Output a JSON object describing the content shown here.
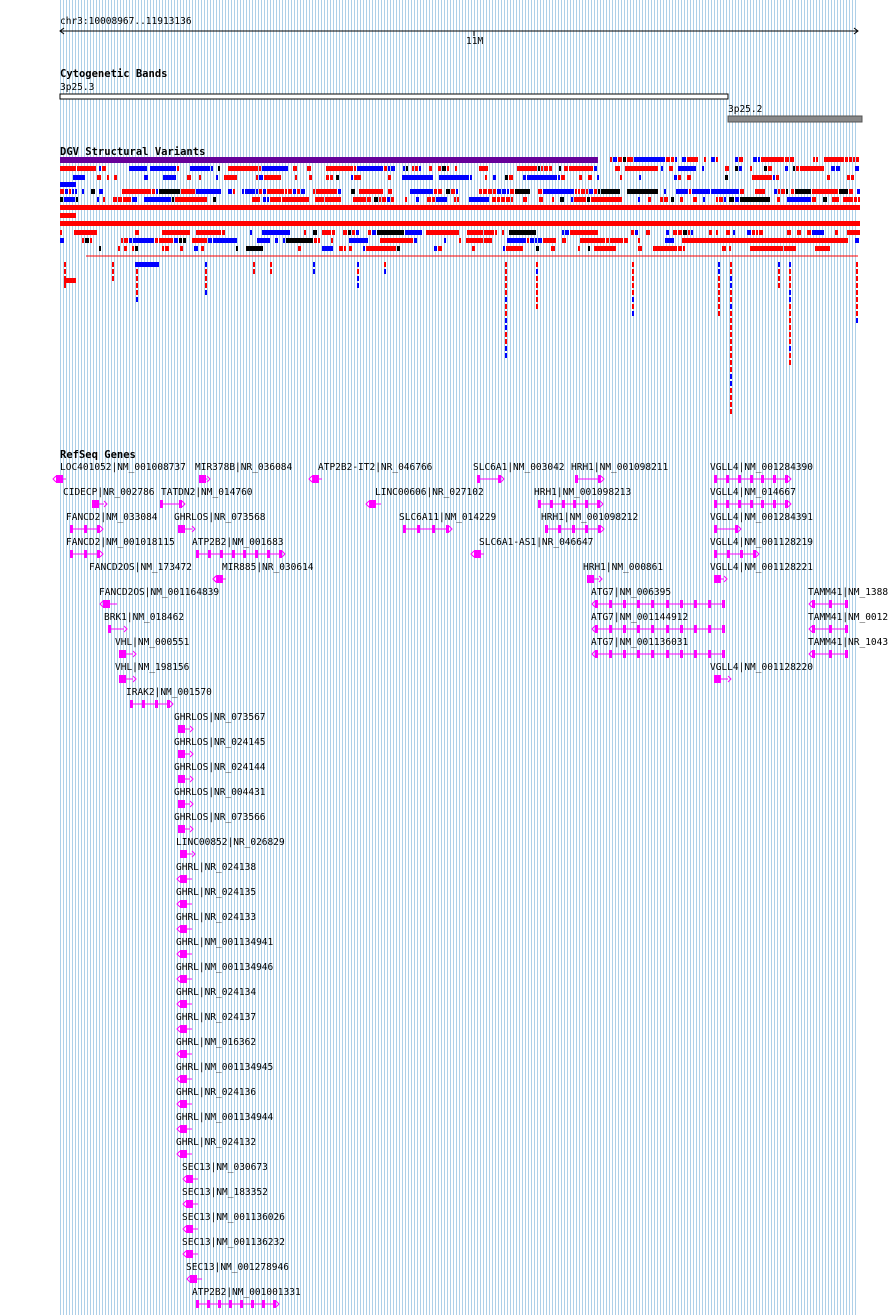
{
  "ruler": {
    "region": "chr3:10008967..11913136",
    "tick_label": "11M"
  },
  "cytobands": {
    "title": "Cytogenetic Bands",
    "bands": [
      "3p25.3",
      "3p25.2"
    ]
  },
  "dgv": {
    "title": "DGV Structural Variants",
    "colors": {
      "loss": "#ff0000",
      "gain": "#0000ff",
      "both": "#660099",
      "other": "#000000"
    }
  },
  "refseq": {
    "title": "RefSeq Genes",
    "color": "#ff00ff",
    "genes": [
      "LOC401052|NM_001008737",
      "MIR378B|NR_036084",
      "ATP2B2-IT2|NR_046766",
      "SLC6A1|NM_003042",
      "HRH1|NM_001098211",
      "VGLL4|NM_001284390",
      "CIDECP|NR_002786",
      "TATDN2|NM_014760",
      "LINC00606|NR_027102",
      "HRH1|NM_001098213",
      "VGLL4|NM_014667",
      "FANCD2|NM_033084",
      "GHRLOS|NR_073568",
      "SLC6A11|NM_014229",
      "HRH1|NM_001098212",
      "VGLL4|NM_001284391",
      "FANCD2|NM_001018115",
      "ATP2B2|NM_001683",
      "SLC6A1-AS1|NR_046647",
      "VGLL4|NM_001128219",
      "FANCD2OS|NM_173472",
      "MIR885|NR_030614",
      "HRH1|NM_000861",
      "VGLL4|NM_001128221",
      "FANCD2OS|NM_001164839",
      "ATG7|NM_006395",
      "TAMM41|NM_1388",
      "BRK1|NM_018462",
      "ATG7|NM_001144912",
      "TAMM41|NM_0012",
      "VHL|NM_000551",
      "ATG7|NM_001136031",
      "TAMM41|NR_1043",
      "VHL|NM_198156",
      "VGLL4|NM_001128220",
      "IRAK2|NM_001570",
      "GHRLOS|NR_073567",
      "GHRLOS|NR_024145",
      "GHRLOS|NR_024144",
      "GHRLOS|NR_004431",
      "GHRLOS|NR_073566",
      "LINC00852|NR_026829",
      "GHRL|NR_024138",
      "GHRL|NR_024135",
      "GHRL|NR_024133",
      "GHRL|NM_001134941",
      "GHRL|NM_001134946",
      "GHRL|NR_024134",
      "GHRL|NR_024137",
      "GHRL|NM_016362",
      "GHRL|NM_001134945",
      "GHRL|NR_024136",
      "GHRL|NM_001134944",
      "GHRL|NR_024132",
      "SEC13|NM_030673",
      "SEC13|NM_183352",
      "SEC13|NM_001136026",
      "SEC13|NM_001136232",
      "SEC13|NM_001278946",
      "ATP2B2|NM_001001331"
    ]
  }
}
